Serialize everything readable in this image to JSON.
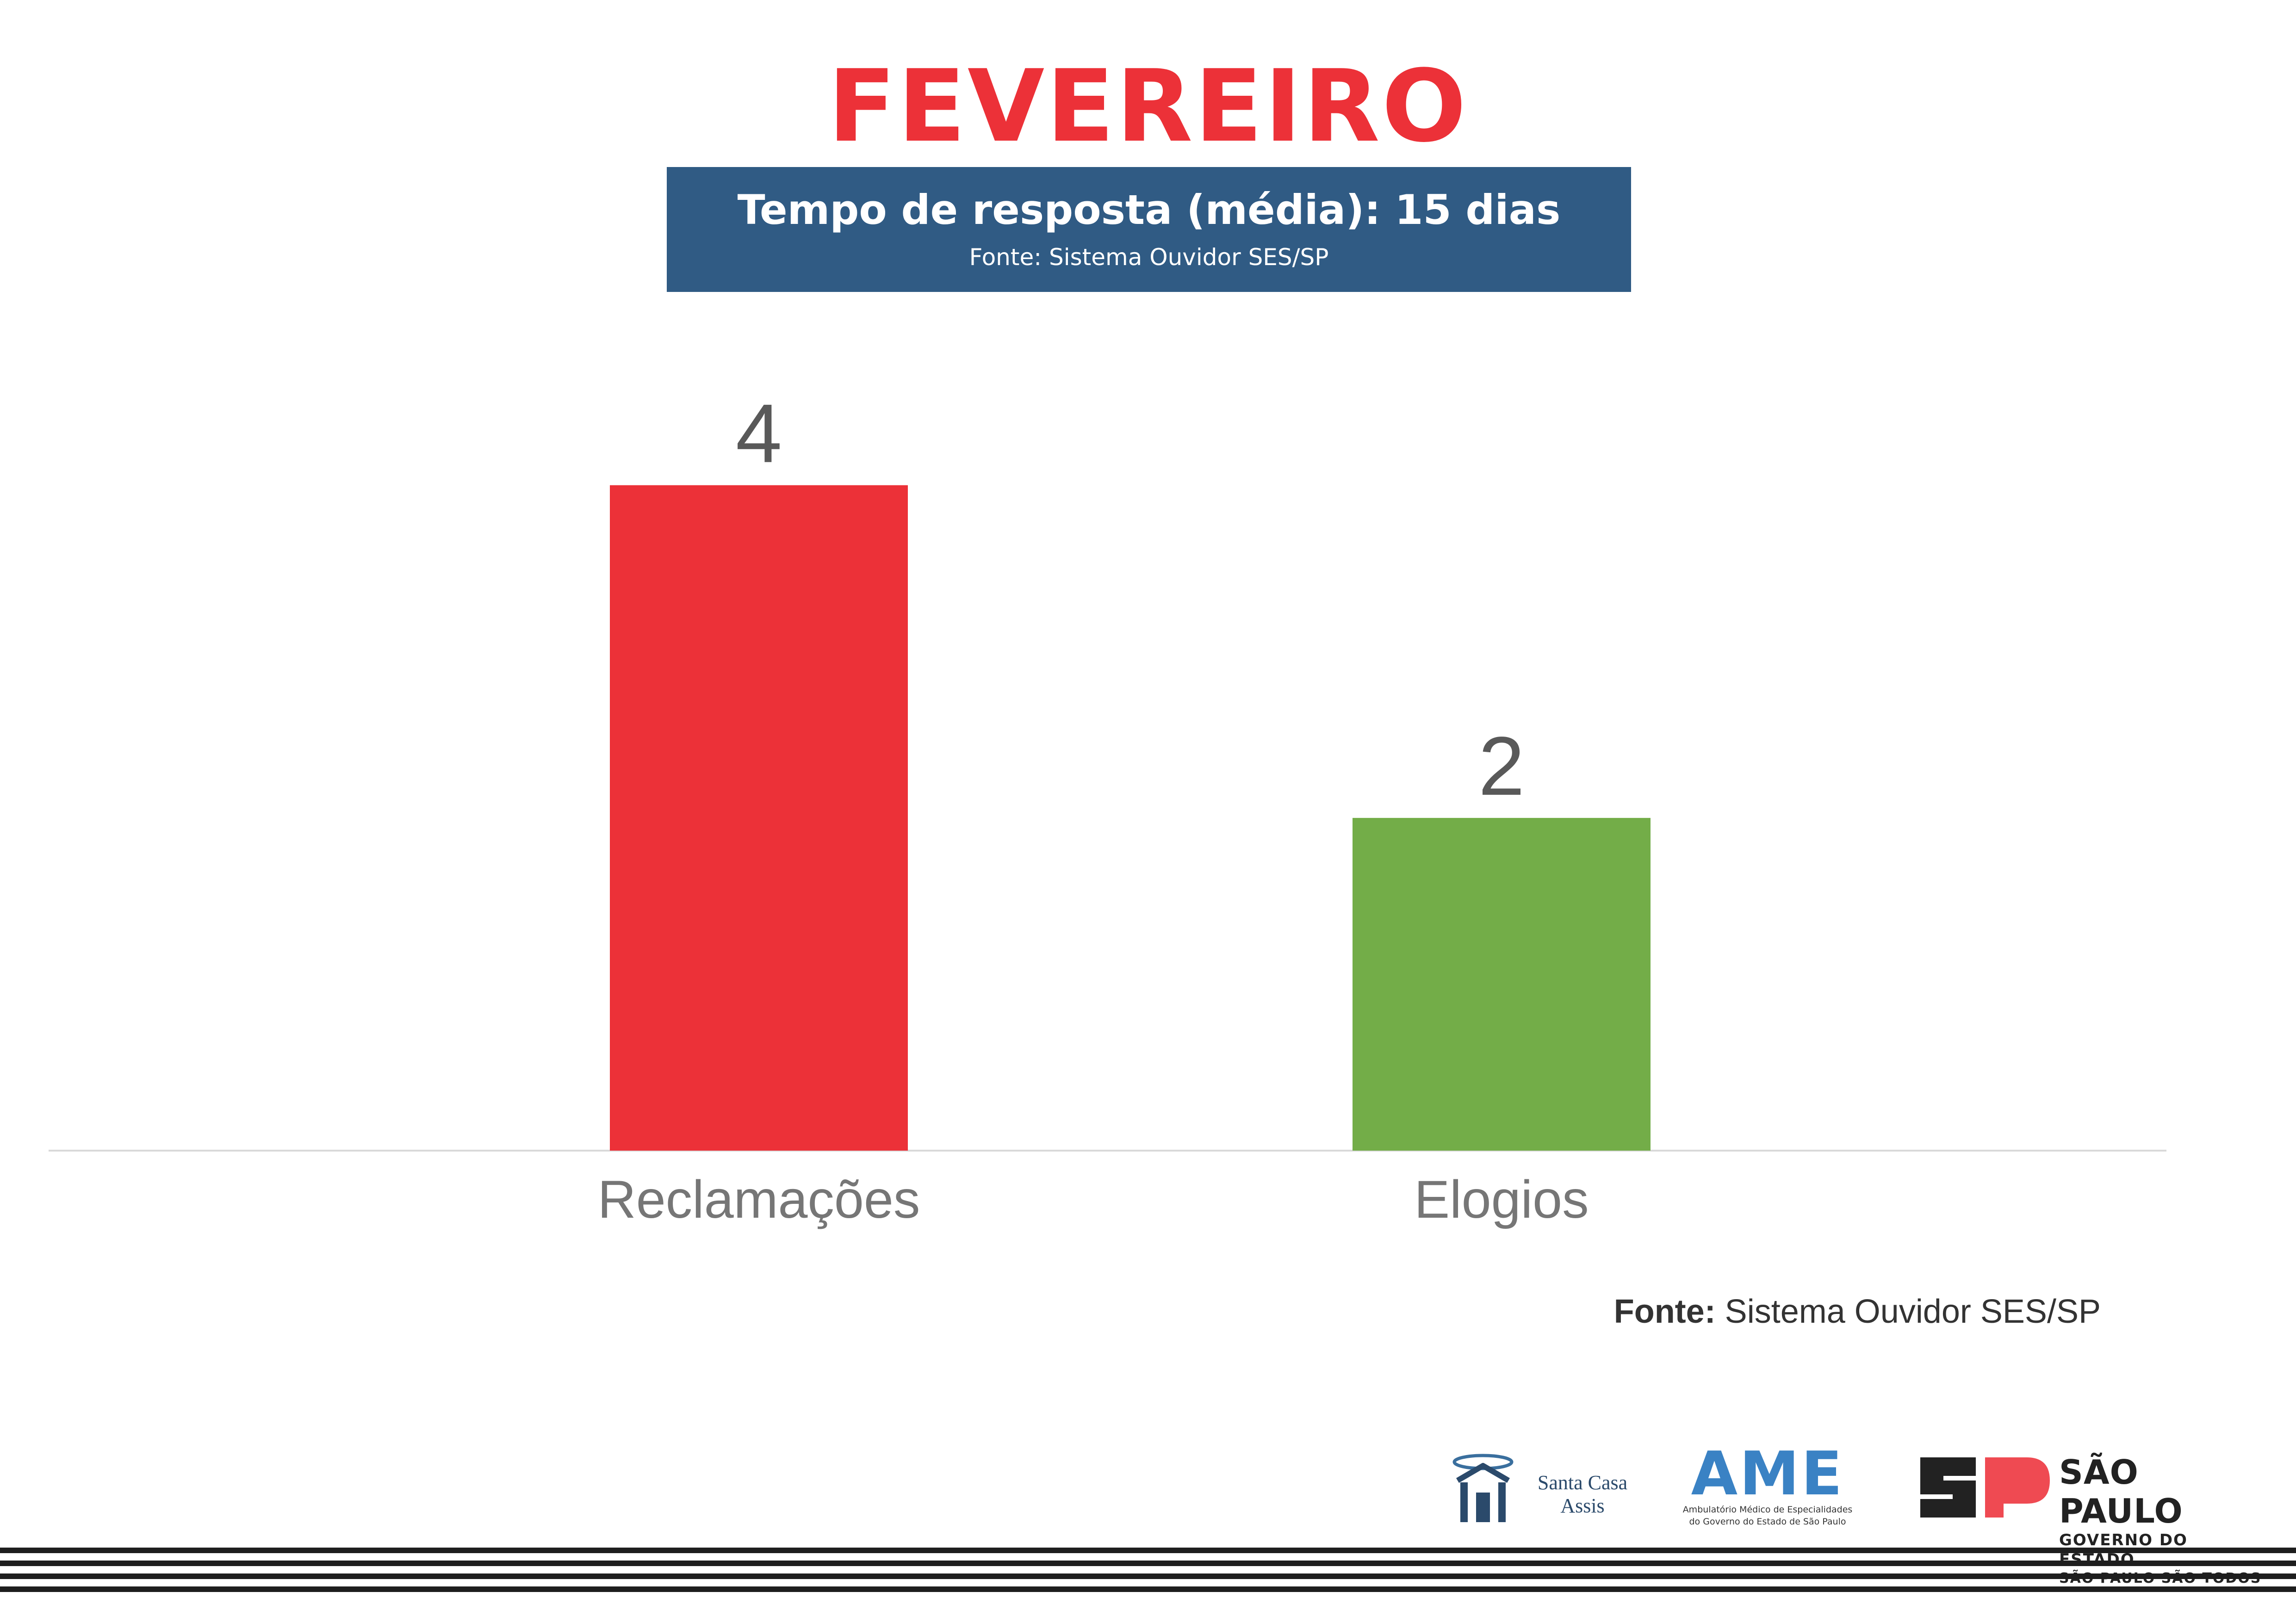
{
  "header": {
    "month": "FEVEREIRO",
    "response_time": "Tempo de resposta (média): 15 dias",
    "source": "Fonte: Sistema Ouvidor SES/SP"
  },
  "chart_data": {
    "type": "bar",
    "categories": [
      "Reclamações",
      "Elogios"
    ],
    "values": [
      4,
      2
    ],
    "colors": [
      "#ec3138",
      "#73ad48"
    ],
    "title": "",
    "xlabel": "",
    "ylabel": "",
    "ylim": [
      0,
      4.6
    ],
    "grid": false,
    "legend": "none"
  },
  "footer": {
    "source_label": "Fonte:",
    "source_text": " Sistema Ouvidor SES/SP"
  },
  "logos": {
    "santa_casa": {
      "line1": "Santa Casa",
      "line2": "Assis",
      "icon": "santa-casa-building-icon"
    },
    "ame": {
      "word": "AME",
      "sub1": "Ambulatório Médico de Especialidades",
      "sub2": "do Governo do Estado de São Paulo"
    },
    "sp": {
      "line1": "SÃO PAULO",
      "line2": "GOVERNO DO ESTADO",
      "line3": "SÃO PAULO SÃO TODOS",
      "icon": "sp-monogram-icon",
      "accent": "#ef4a52"
    }
  },
  "colors": {
    "title_red": "#ec3138",
    "box_blue": "#305b84",
    "label_gray": "#767676",
    "value_gray": "#595959"
  }
}
